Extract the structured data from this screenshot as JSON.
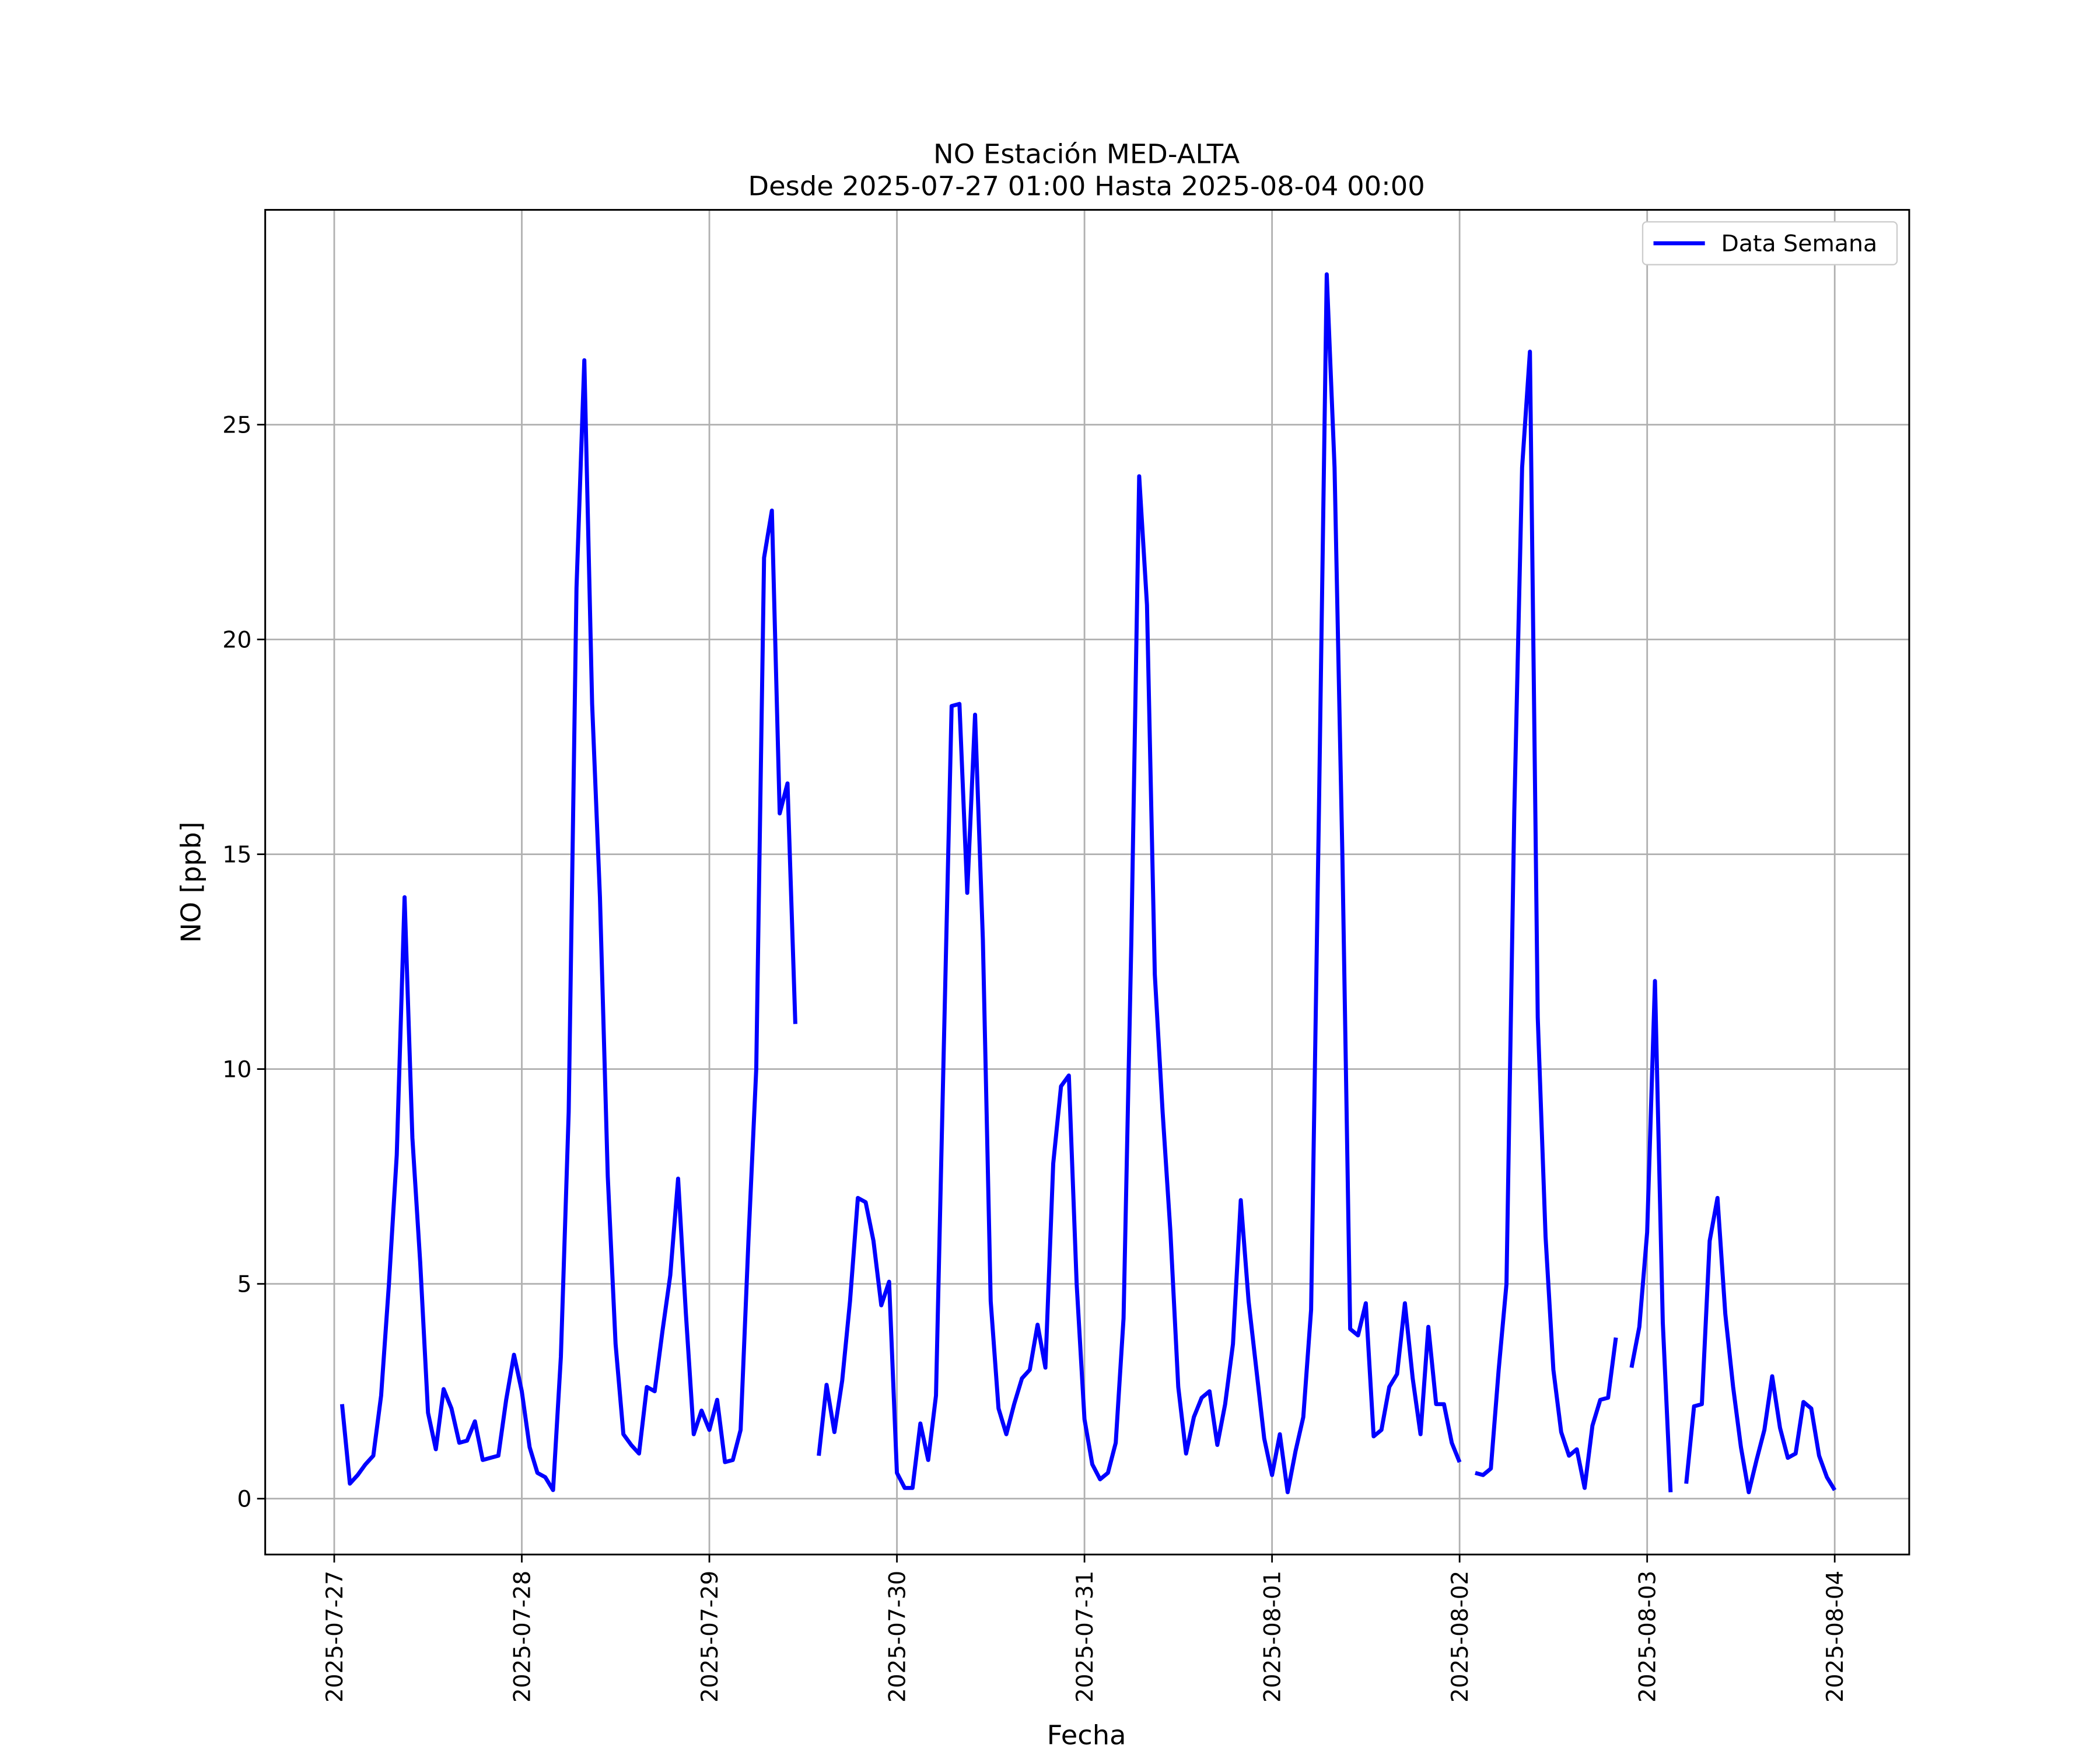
{
  "chart_data": {
    "type": "line",
    "title": "NO Estación MED-ALTA",
    "subtitle": "Desde 2025-07-27 01:00 Hasta 2025-08-04 00:00",
    "xlabel": "Fecha",
    "ylabel": "NO [ppb]",
    "x": [
      "2025-07-27 01:00",
      "2025-07-27 02:00",
      "2025-07-27 03:00",
      "2025-07-27 04:00",
      "2025-07-27 05:00",
      "2025-07-27 06:00",
      "2025-07-27 07:00",
      "2025-07-27 08:00",
      "2025-07-27 09:00",
      "2025-07-27 10:00",
      "2025-07-27 11:00",
      "2025-07-27 12:00",
      "2025-07-27 13:00",
      "2025-07-27 14:00",
      "2025-07-27 15:00",
      "2025-07-27 16:00",
      "2025-07-27 17:00",
      "2025-07-27 18:00",
      "2025-07-27 19:00",
      "2025-07-27 20:00",
      "2025-07-27 21:00",
      "2025-07-27 22:00",
      "2025-07-27 23:00",
      "2025-07-28 00:00",
      "2025-07-28 01:00",
      "2025-07-28 02:00",
      "2025-07-28 03:00",
      "2025-07-28 04:00",
      "2025-07-28 05:00",
      "2025-07-28 06:00",
      "2025-07-28 07:00",
      "2025-07-28 08:00",
      "2025-07-28 09:00",
      "2025-07-28 10:00",
      "2025-07-28 11:00",
      "2025-07-28 12:00",
      "2025-07-28 13:00",
      "2025-07-28 14:00",
      "2025-07-28 15:00",
      "2025-07-28 16:00",
      "2025-07-28 17:00",
      "2025-07-28 18:00",
      "2025-07-28 19:00",
      "2025-07-28 20:00",
      "2025-07-28 21:00",
      "2025-07-28 22:00",
      "2025-07-28 23:00",
      "2025-07-29 00:00",
      "2025-07-29 01:00",
      "2025-07-29 02:00",
      "2025-07-29 03:00",
      "2025-07-29 04:00",
      "2025-07-29 05:00",
      "2025-07-29 06:00",
      "2025-07-29 07:00",
      "2025-07-29 08:00",
      "2025-07-29 09:00",
      "2025-07-29 10:00",
      "2025-07-29 11:00",
      "2025-07-29 12:00",
      "2025-07-29 13:00",
      "2025-07-29 14:00",
      "2025-07-29 15:00",
      "2025-07-29 16:00",
      "2025-07-29 17:00",
      "2025-07-29 18:00",
      "2025-07-29 19:00",
      "2025-07-29 20:00",
      "2025-07-29 21:00",
      "2025-07-29 22:00",
      "2025-07-29 23:00",
      "2025-07-30 00:00",
      "2025-07-30 01:00",
      "2025-07-30 02:00",
      "2025-07-30 03:00",
      "2025-07-30 04:00",
      "2025-07-30 05:00",
      "2025-07-30 06:00",
      "2025-07-30 07:00",
      "2025-07-30 08:00",
      "2025-07-30 09:00",
      "2025-07-30 10:00",
      "2025-07-30 11:00",
      "2025-07-30 12:00",
      "2025-07-30 13:00",
      "2025-07-30 14:00",
      "2025-07-30 15:00",
      "2025-07-30 16:00",
      "2025-07-30 17:00",
      "2025-07-30 18:00",
      "2025-07-30 19:00",
      "2025-07-30 20:00",
      "2025-07-30 21:00",
      "2025-07-30 22:00",
      "2025-07-30 23:00",
      "2025-07-31 00:00",
      "2025-07-31 01:00",
      "2025-07-31 02:00",
      "2025-07-31 03:00",
      "2025-07-31 04:00",
      "2025-07-31 05:00",
      "2025-07-31 06:00",
      "2025-07-31 07:00",
      "2025-07-31 08:00",
      "2025-07-31 09:00",
      "2025-07-31 10:00",
      "2025-07-31 11:00",
      "2025-07-31 12:00",
      "2025-07-31 13:00",
      "2025-07-31 14:00",
      "2025-07-31 15:00",
      "2025-07-31 16:00",
      "2025-07-31 17:00",
      "2025-07-31 18:00",
      "2025-07-31 19:00",
      "2025-07-31 20:00",
      "2025-07-31 21:00",
      "2025-07-31 22:00",
      "2025-07-31 23:00",
      "2025-08-01 00:00",
      "2025-08-01 01:00",
      "2025-08-01 02:00",
      "2025-08-01 03:00",
      "2025-08-01 04:00",
      "2025-08-01 05:00",
      "2025-08-01 06:00",
      "2025-08-01 07:00",
      "2025-08-01 08:00",
      "2025-08-01 09:00",
      "2025-08-01 10:00",
      "2025-08-01 11:00",
      "2025-08-01 12:00",
      "2025-08-01 13:00",
      "2025-08-01 14:00",
      "2025-08-01 15:00",
      "2025-08-01 16:00",
      "2025-08-01 17:00",
      "2025-08-01 18:00",
      "2025-08-01 19:00",
      "2025-08-01 20:00",
      "2025-08-01 21:00",
      "2025-08-01 22:00",
      "2025-08-01 23:00",
      "2025-08-02 00:00",
      "2025-08-02 01:00",
      "2025-08-02 02:00",
      "2025-08-02 03:00",
      "2025-08-02 04:00",
      "2025-08-02 05:00",
      "2025-08-02 06:00",
      "2025-08-02 07:00",
      "2025-08-02 08:00",
      "2025-08-02 09:00",
      "2025-08-02 10:00",
      "2025-08-02 11:00",
      "2025-08-02 12:00",
      "2025-08-02 13:00",
      "2025-08-02 14:00",
      "2025-08-02 15:00",
      "2025-08-02 16:00",
      "2025-08-02 17:00",
      "2025-08-02 18:00",
      "2025-08-02 19:00",
      "2025-08-02 20:00",
      "2025-08-02 21:00",
      "2025-08-02 22:00",
      "2025-08-02 23:00",
      "2025-08-03 00:00",
      "2025-08-03 01:00",
      "2025-08-03 02:00",
      "2025-08-03 03:00",
      "2025-08-03 04:00",
      "2025-08-03 05:00",
      "2025-08-03 06:00",
      "2025-08-03 07:00",
      "2025-08-03 08:00",
      "2025-08-03 09:00",
      "2025-08-03 10:00",
      "2025-08-03 11:00",
      "2025-08-03 12:00",
      "2025-08-03 13:00",
      "2025-08-03 14:00",
      "2025-08-03 15:00",
      "2025-08-03 16:00",
      "2025-08-03 17:00",
      "2025-08-03 18:00",
      "2025-08-03 19:00",
      "2025-08-03 20:00",
      "2025-08-03 21:00",
      "2025-08-03 22:00",
      "2025-08-03 23:00",
      "2025-08-04 00:00"
    ],
    "series": [
      {
        "name": "Data Semana",
        "color": "#0000ff",
        "values": [
          2.2,
          0.35,
          0.55,
          0.8,
          1.0,
          2.4,
          5.0,
          8.0,
          14.0,
          8.4,
          5.5,
          2.0,
          1.15,
          2.55,
          2.1,
          1.3,
          1.35,
          1.8,
          0.9,
          0.95,
          1.0,
          2.3,
          3.35,
          2.5,
          1.2,
          0.6,
          0.5,
          0.2,
          3.3,
          9.0,
          21.2,
          26.5,
          18.5,
          14.0,
          7.5,
          3.6,
          1.5,
          1.25,
          1.05,
          2.6,
          2.5,
          3.9,
          5.2,
          7.45,
          4.3,
          1.5,
          2.05,
          1.6,
          2.3,
          0.85,
          0.9,
          1.6,
          6.0,
          10.0,
          21.9,
          23.0,
          15.95,
          16.65,
          11.05,
          null,
          null,
          1.0,
          2.65,
          1.55,
          2.75,
          4.6,
          7.0,
          6.9,
          6.0,
          4.5,
          5.05,
          0.6,
          0.25,
          0.25,
          1.75,
          0.9,
          2.4,
          10.5,
          18.45,
          18.5,
          14.1,
          18.25,
          13.0,
          4.6,
          2.1,
          1.5,
          2.2,
          2.8,
          3.0,
          4.05,
          3.05,
          7.8,
          9.6,
          9.85,
          5.0,
          1.85,
          0.8,
          0.45,
          0.6,
          1.3,
          4.2,
          13.0,
          23.8,
          20.8,
          12.2,
          9.0,
          6.2,
          2.6,
          1.05,
          1.9,
          2.35,
          2.5,
          1.25,
          2.2,
          3.6,
          6.95,
          4.6,
          3.0,
          1.4,
          0.55,
          1.5,
          0.15,
          1.1,
          1.9,
          4.4,
          16.0,
          28.5,
          24.0,
          15.0,
          3.95,
          3.8,
          4.55,
          1.45,
          1.6,
          2.6,
          2.9,
          4.55,
          2.8,
          1.5,
          4.0,
          2.2,
          2.2,
          1.3,
          0.85,
          null,
          0.6,
          0.55,
          0.7,
          3.0,
          5.0,
          16.0,
          24.0,
          26.7,
          11.2,
          6.1,
          3.0,
          1.55,
          1.0,
          1.15,
          0.25,
          1.7,
          2.3,
          2.35,
          3.75,
          null,
          3.05,
          4.0,
          6.2,
          12.05,
          4.1,
          0.15,
          null,
          0.35,
          2.15,
          2.2,
          6.0,
          7.0,
          4.3,
          2.6,
          1.2,
          0.15,
          0.9,
          1.6,
          2.85,
          1.65,
          0.95,
          1.05,
          2.25,
          2.1,
          1.0,
          0.5,
          0.2
        ]
      }
    ],
    "xlim": [
      "2025-07-26 15:10",
      "2025-08-04 09:32"
    ],
    "xticks": [
      "2025-07-27",
      "2025-07-28",
      "2025-07-29",
      "2025-07-30",
      "2025-07-31",
      "2025-08-01",
      "2025-08-02",
      "2025-08-03",
      "2025-08-04"
    ],
    "ylim": [
      -1.3,
      30.0
    ],
    "yticks": [
      0,
      5,
      10,
      15,
      20,
      25
    ],
    "grid": true,
    "legend": "upper right"
  }
}
